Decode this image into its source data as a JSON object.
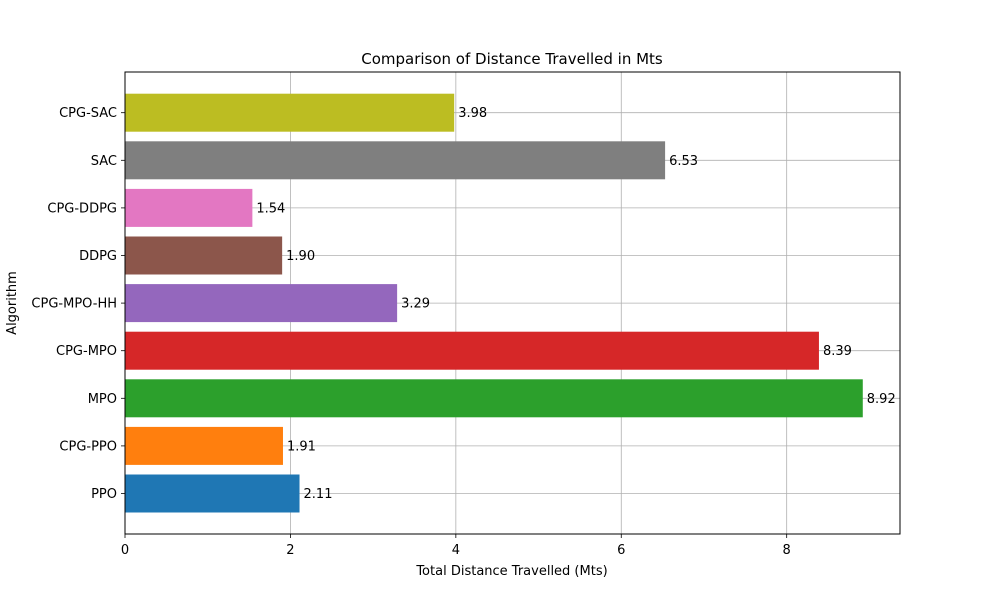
{
  "chart_data": {
    "type": "bar",
    "orientation": "horizontal",
    "title": "Comparison of Distance Travelled in Mts",
    "xlabel": "Total Distance Travelled (Mts)",
    "ylabel": "Algorithm",
    "categories": [
      "PPO",
      "CPG-PPO",
      "MPO",
      "CPG-MPO",
      "CPG-MPO-HH",
      "DDPG",
      "CPG-DDPG",
      "SAC",
      "CPG-SAC"
    ],
    "values": [
      2.11,
      1.91,
      8.92,
      8.39,
      3.29,
      1.9,
      1.54,
      6.53,
      3.98
    ],
    "data_labels": [
      "2.11",
      "1.91",
      "8.92",
      "8.39",
      "3.29",
      "1.90",
      "1.54",
      "6.53",
      "3.98"
    ],
    "colors": [
      "#1f77b4",
      "#ff7f0e",
      "#2ca02c",
      "#d62728",
      "#9467bd",
      "#8c564b",
      "#e377c2",
      "#7f7f7f",
      "#bcbd22"
    ],
    "xlim": [
      0,
      9.37
    ],
    "xticks": [
      0,
      2,
      4,
      6,
      8
    ],
    "xtick_labels": [
      "0",
      "2",
      "4",
      "6",
      "8"
    ],
    "grid": true
  }
}
